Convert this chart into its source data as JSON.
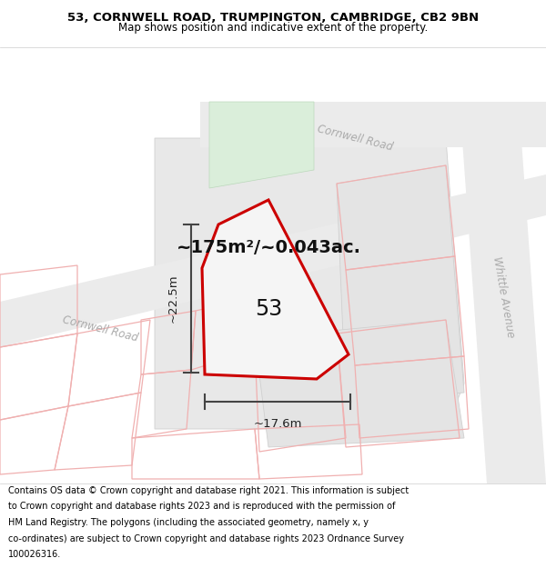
{
  "title_line1": "53, CORNWELL ROAD, TRUMPINGTON, CAMBRIDGE, CB2 9BN",
  "title_line2": "Map shows position and indicative extent of the property.",
  "footer_lines": [
    "Contains OS data © Crown copyright and database right 2021. This information is subject",
    "to Crown copyright and database rights 2023 and is reproduced with the permission of",
    "HM Land Registry. The polygons (including the associated geometry, namely x, y",
    "co-ordinates) are subject to Crown copyright and database rights 2023 Ordnance Survey",
    "100026316."
  ],
  "area_label": "~175m²/~0.043ac.",
  "number_label": "53",
  "dim_h": "~22.5m",
  "dim_w": "~17.6m",
  "road_label_lower": "Cornwell Road",
  "road_label_upper": "Cornwell Road",
  "road_label_right": "Whittle Avenue",
  "map_bg": "#ffffff",
  "gray_block": "#e8e8e8",
  "gray_block2": "#e0e0e0",
  "road_gray": "#e0e0e0",
  "plot_fill": "#eeeeee",
  "plot_outline": "#cc0000",
  "pink_line": "#f0b0b0",
  "green_fill": "#daeeda",
  "header_bg": "#ffffff",
  "footer_bg": "#ffffff",
  "dim_color": "#444444",
  "road_text_color": "#aaaaaa",
  "gray_line": "#d0d0d0"
}
